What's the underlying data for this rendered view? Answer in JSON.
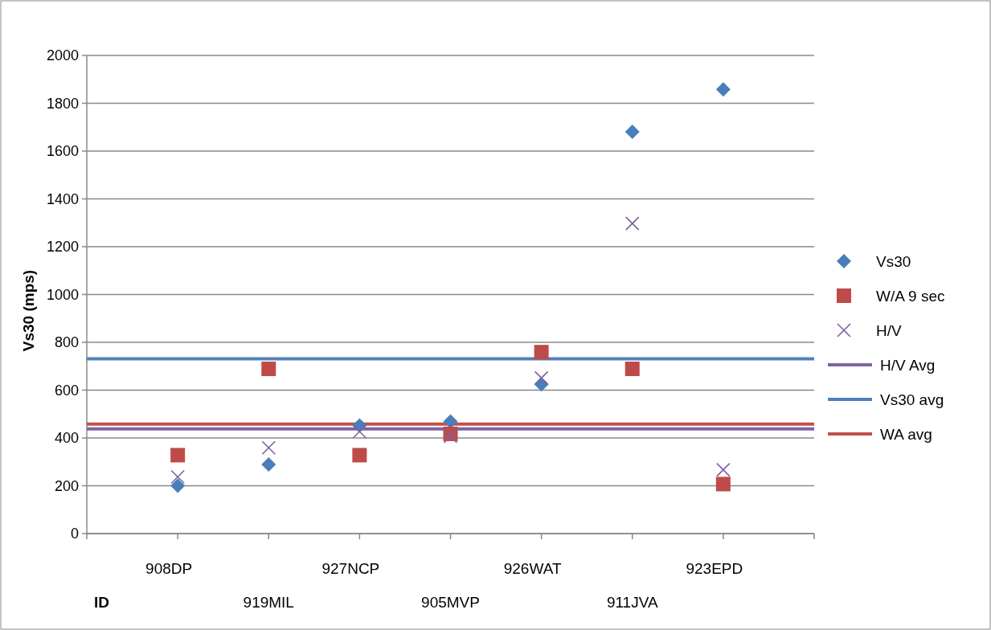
{
  "chart_data": {
    "type": "scatter",
    "xlabel": "ID",
    "ylabel": "Vs30 (mps)",
    "categories": [
      null,
      "908DP",
      "919MIL",
      "927NCP",
      "905MVP",
      "926WAT",
      "911JVA",
      "923EPD",
      null
    ],
    "ylim": [
      0,
      2000
    ],
    "yticks": [
      0,
      200,
      400,
      600,
      800,
      1000,
      1200,
      1400,
      1600,
      1800,
      2000
    ],
    "grid": "y",
    "legend": "right",
    "series": [
      {
        "name": "Vs30",
        "marker": "diamond",
        "color": "#4a7ebb",
        "values": [
          null,
          200,
          289,
          452,
          469,
          624,
          1681,
          1858,
          null
        ]
      },
      {
        "name": "W/A 9 sec",
        "marker": "square",
        "color": "#be4b48",
        "values": [
          null,
          328,
          689,
          328,
          417,
          759,
          689,
          207,
          null
        ]
      },
      {
        "name": "H/V",
        "marker": "cross",
        "color": "#7d60a0",
        "values": [
          null,
          237,
          359,
          427,
          407,
          651,
          1297,
          267,
          null
        ]
      },
      {
        "name": "H/V Avg",
        "type": "line",
        "marker": "none",
        "color": "#8064a2",
        "values": [
          438,
          438,
          438,
          438,
          438,
          438,
          438,
          438,
          438
        ]
      },
      {
        "name": "Vs30 avg",
        "type": "line",
        "marker": "none",
        "color": "#4f81bd",
        "values": [
          731,
          731,
          731,
          731,
          731,
          731,
          731,
          731,
          731
        ]
      },
      {
        "name": "WA avg",
        "type": "line",
        "marker": "none",
        "color": "#c0504d",
        "values": [
          458,
          458,
          458,
          458,
          458,
          458,
          458,
          458,
          458
        ]
      }
    ]
  }
}
